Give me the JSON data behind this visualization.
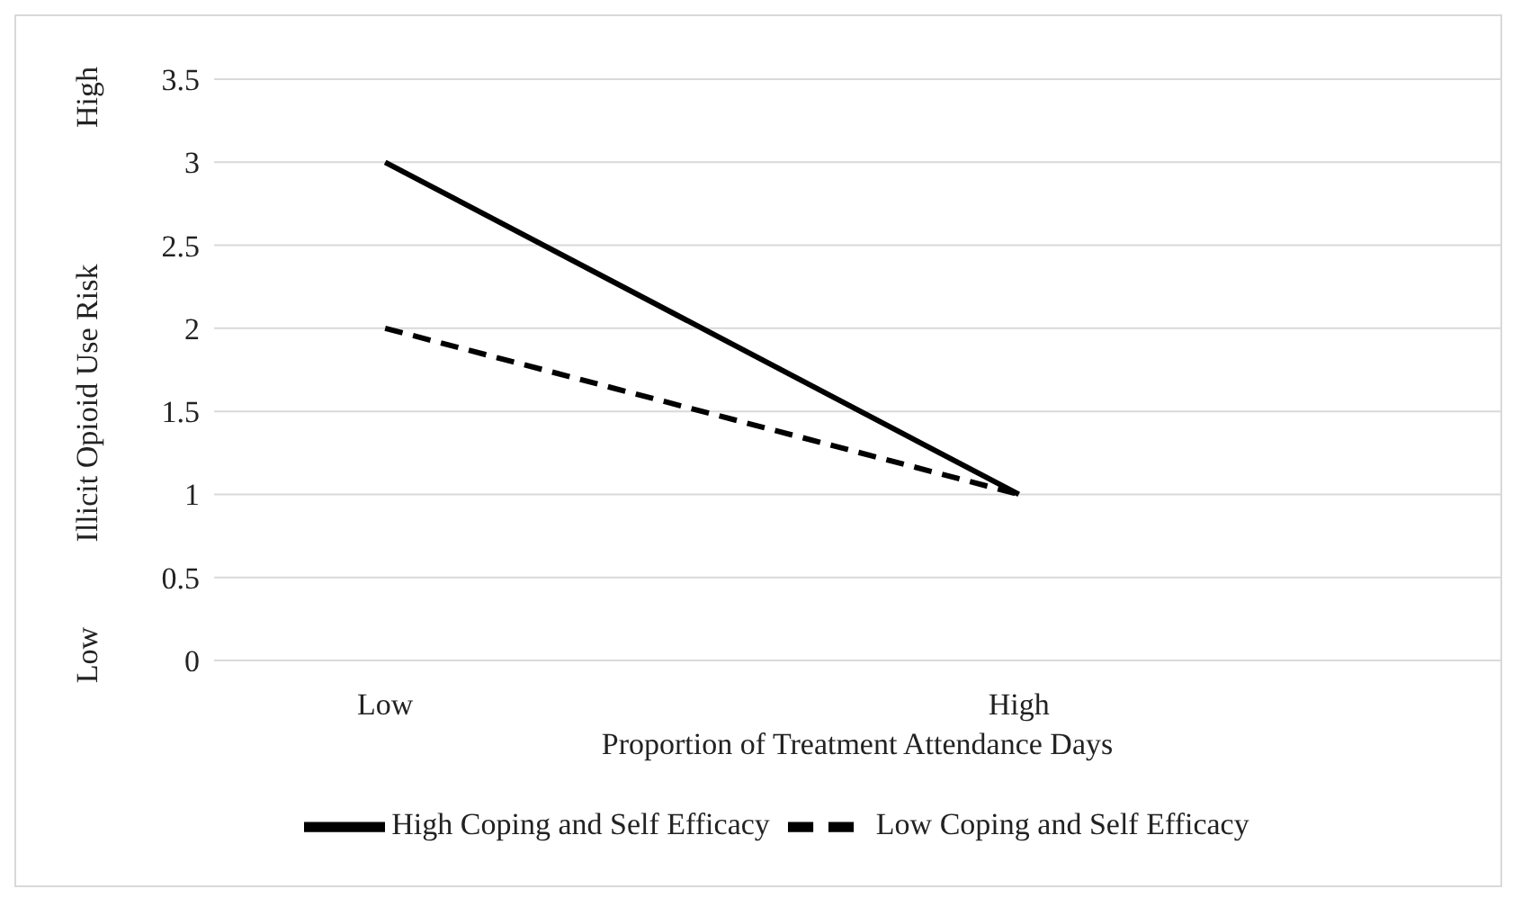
{
  "chart_data": {
    "type": "line",
    "xlabel": "Proportion of Treatment Attendance Days",
    "ylabel": "Illicit Opioid Use Risk",
    "categories": [
      "Low",
      "High"
    ],
    "series": [
      {
        "name": "High Coping and Self Efficacy",
        "color": "#000000",
        "values": [
          3,
          1
        ],
        "line_style": "solid"
      },
      {
        "name": "Low Coping and Self Efficacy",
        "color": "#000000",
        "values": [
          2,
          1
        ],
        "line_style": "dashed"
      }
    ],
    "ylim": [
      0,
      3.5
    ],
    "yticks": [
      0,
      0.5,
      1,
      1.5,
      2,
      2.5,
      3,
      3.5
    ],
    "grid": "y",
    "legend": "bottom",
    "marker": "none",
    "annotations": [
      "High",
      "Low"
    ]
  }
}
